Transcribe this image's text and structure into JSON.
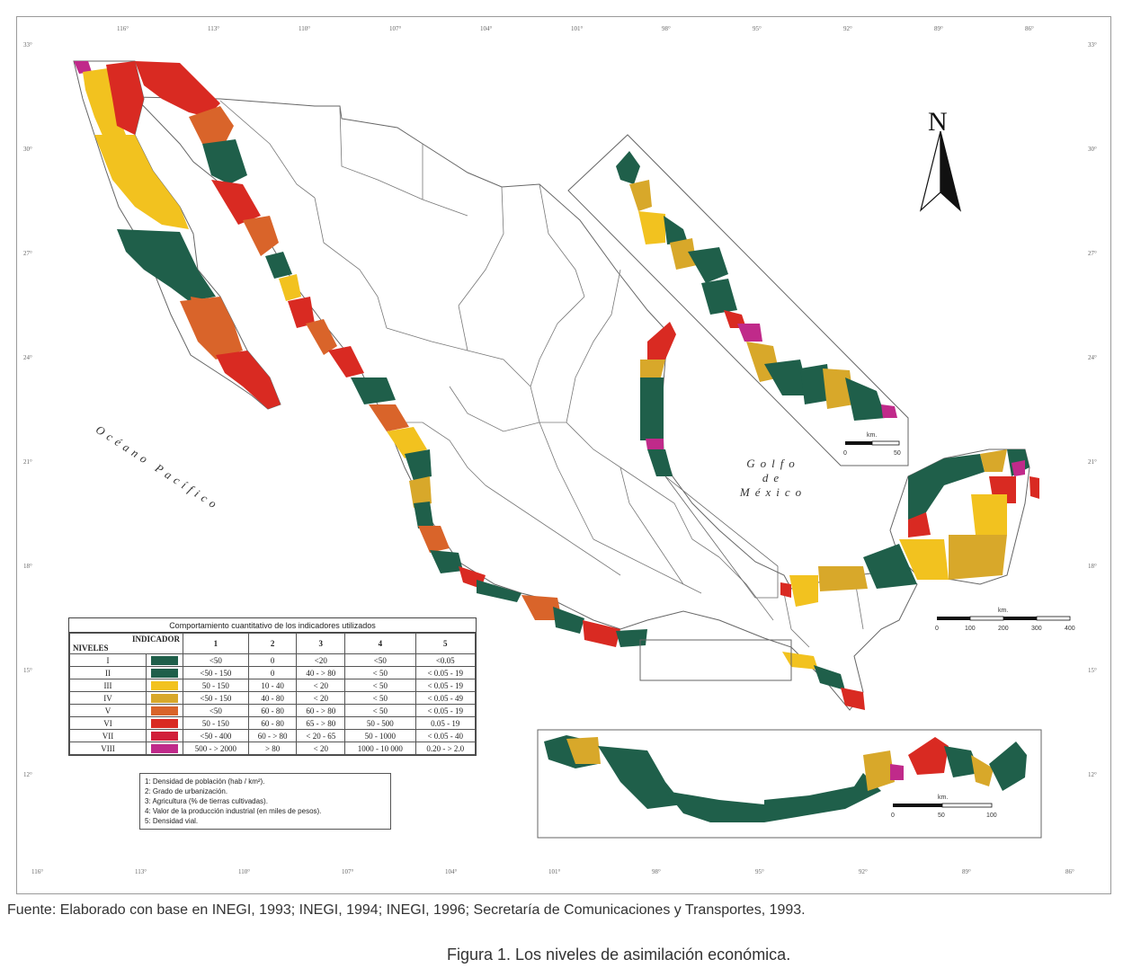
{
  "lon_ticks_top": [
    "116°",
    "113°",
    "110°",
    "107°",
    "104°",
    "101°",
    "98°",
    "95°",
    "92°",
    "89°",
    "86°"
  ],
  "lon_ticks_bottom": [
    "116°",
    "113°",
    "110°",
    "107°",
    "104°",
    "101°",
    "98°",
    "95°",
    "92°",
    "89°",
    "86°"
  ],
  "lat_ticks": [
    "33°",
    "30°",
    "27°",
    "24°",
    "21°",
    "18°",
    "15°",
    "12°"
  ],
  "ocean_label": "Océano Pacífico",
  "gulf_label": [
    "Golfo",
    "de",
    "México"
  ],
  "north_label": "N",
  "scale_main": {
    "unit": "km.",
    "ticks": [
      "0",
      "100",
      "200",
      "300",
      "400"
    ]
  },
  "scale_inset_top": {
    "unit": "km.",
    "ticks": [
      "0",
      "50"
    ]
  },
  "scale_inset_bottom": {
    "unit": "km.",
    "ticks": [
      "0",
      "50",
      "100"
    ]
  },
  "legend": {
    "title": "Comportamiento cuantitativo de los indicadores utilizados",
    "header_indicador": "INDICADOR",
    "header_niveles": "NIVELES",
    "columns": [
      "1",
      "2",
      "3",
      "4",
      "5"
    ],
    "rows": [
      {
        "level": "I",
        "color": "#1f5f4a",
        "values": [
          "<50",
          "0",
          "<20",
          "<50",
          "<0.05"
        ]
      },
      {
        "level": "II",
        "color": "#1f5f4a",
        "values": [
          "<50 - 150",
          "0",
          "40 - > 80",
          "< 50",
          "< 0.05 - 19"
        ]
      },
      {
        "level": "III",
        "color": "#f2c21f",
        "values": [
          "50 - 150",
          "10 - 40",
          "< 20",
          "< 50",
          "< 0.05 - 19"
        ]
      },
      {
        "level": "IV",
        "color": "#d8a82a",
        "values": [
          "<50 - 150",
          "40 - 80",
          "< 20",
          "< 50",
          "< 0.05 - 49"
        ]
      },
      {
        "level": "V",
        "color": "#d9642a",
        "values": [
          "<50",
          "60 - 80",
          "60 - > 80",
          "< 50",
          "< 0.05 - 19"
        ]
      },
      {
        "level": "VI",
        "color": "#d92a22",
        "values": [
          "50 - 150",
          "60 - 80",
          "65 - > 80",
          "50 - 500",
          "0.05 - 19"
        ]
      },
      {
        "level": "VII",
        "color": "#d11f3a",
        "values": [
          "<50 - 400",
          "60 - > 80",
          "< 20 - 65",
          "50 - 1000",
          "< 0.05 - 40"
        ]
      },
      {
        "level": "VIII",
        "color": "#c02a8a",
        "values": [
          "500 - > 2000",
          "> 80",
          "< 20",
          "1000 - 10 000",
          "0.20 - > 2.0"
        ]
      }
    ]
  },
  "notes": [
    "1: Densidad de población (hab / km²).",
    "2: Grado de urbanización.",
    "3: Agricultura (% de tierras cultivadas).",
    "4: Valor de la producción industrial (en miles de pesos).",
    "5: Densidad vial."
  ],
  "source": "Fuente: Elaborado con base en INEGI, 1993; INEGI, 1994; INEGI, 1996; Secretaría de Comunicaciones y Transportes, 1993.",
  "figure_caption": "Figura 1. Los niveles de asimilación económica.",
  "colors": {
    "green": "#1f5f4a",
    "yellow": "#f2c21f",
    "ochre": "#d8a82a",
    "orange": "#d9642a",
    "red": "#d92a22",
    "crimson": "#d11f3a",
    "magenta": "#c02a8a"
  }
}
